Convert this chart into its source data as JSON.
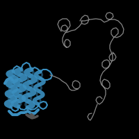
{
  "background_color": "#000000",
  "figsize": [
    2.0,
    2.0
  ],
  "dpi": 100,
  "blue": "#3a8fc0",
  "blue_dark": "#1e6a9a",
  "gray": "#888888",
  "gray_light": "#aaaaaa",
  "gray_dark": "#555555"
}
